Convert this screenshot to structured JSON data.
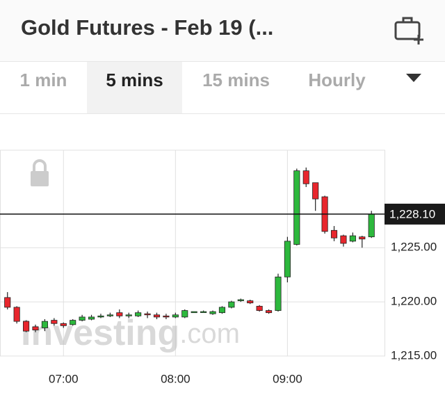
{
  "header": {
    "title": "Gold Futures - Feb 19 (..."
  },
  "tabs": [
    "1 min",
    "5 mins",
    "15 mins",
    "Hourly"
  ],
  "active_tab": 1,
  "chart_data": {
    "type": "candlestick",
    "watermark": [
      "Investing",
      ".com"
    ],
    "x": [
      390,
      395,
      400,
      405,
      410,
      415,
      420,
      425,
      430,
      435,
      440,
      445,
      450,
      455,
      460,
      465,
      470,
      475,
      480,
      485,
      490,
      495,
      500,
      505,
      510,
      515,
      520,
      525,
      530,
      535,
      540,
      545,
      550,
      555,
      560,
      565,
      570,
      575,
      580,
      585
    ],
    "open": [
      1220.4,
      1219.5,
      1218.2,
      1217.7,
      1217.6,
      1218.3,
      1218.0,
      1217.9,
      1218.3,
      1218.4,
      1218.6,
      1218.7,
      1219.0,
      1218.7,
      1218.7,
      1218.9,
      1218.8,
      1218.7,
      1218.6,
      1218.6,
      1219.0,
      1219.05,
      1218.9,
      1219.0,
      1219.5,
      1220.1,
      1220.1,
      1219.6,
      1219.2,
      1219.2,
      1222.3,
      1225.3,
      1232.1,
      1231.0,
      1229.7,
      1226.6,
      1226.1,
      1225.6,
      1226.0,
      1226.0
    ],
    "high": [
      1220.9,
      1219.6,
      1218.3,
      1217.9,
      1218.4,
      1218.5,
      1218.1,
      1218.4,
      1218.8,
      1218.8,
      1218.9,
      1219.0,
      1219.3,
      1219.0,
      1219.2,
      1219.1,
      1219.0,
      1218.9,
      1219.0,
      1219.3,
      1219.1,
      1219.2,
      1219.2,
      1219.6,
      1220.1,
      1220.3,
      1220.2,
      1219.7,
      1219.3,
      1222.6,
      1226.0,
      1232.3,
      1232.4,
      1231.0,
      1229.8,
      1227.0,
      1226.2,
      1226.4,
      1226.1,
      1228.4
    ],
    "low": [
      1219.3,
      1218.0,
      1217.2,
      1217.2,
      1217.3,
      1217.8,
      1217.6,
      1217.8,
      1218.2,
      1218.3,
      1218.5,
      1218.6,
      1218.5,
      1218.5,
      1218.6,
      1218.5,
      1218.4,
      1218.4,
      1218.5,
      1218.5,
      1219.0,
      1219.0,
      1218.8,
      1218.9,
      1219.4,
      1220.0,
      1219.8,
      1219.1,
      1218.9,
      1219.1,
      1221.8,
      1225.2,
      1230.6,
      1228.4,
      1226.3,
      1225.6,
      1225.1,
      1225.5,
      1225.0,
      1225.9
    ],
    "close": [
      1219.5,
      1218.2,
      1217.3,
      1217.4,
      1218.2,
      1218.0,
      1217.8,
      1218.3,
      1218.6,
      1218.6,
      1218.7,
      1218.8,
      1218.7,
      1218.8,
      1219.0,
      1218.8,
      1218.6,
      1218.6,
      1218.8,
      1219.2,
      1219.1,
      1219.1,
      1219.1,
      1219.5,
      1220.0,
      1220.2,
      1219.9,
      1219.2,
      1219.0,
      1222.3,
      1225.6,
      1232.1,
      1230.9,
      1229.5,
      1226.5,
      1225.9,
      1225.4,
      1226.1,
      1225.8,
      1228.1
    ],
    "up_color": "#2db83d",
    "down_color": "#e8262d",
    "xlim": [
      386,
      592
    ],
    "xticks": [
      {
        "value": 420,
        "label": "07:00"
      },
      {
        "value": 480,
        "label": "08:00"
      },
      {
        "value": 540,
        "label": "09:00"
      }
    ],
    "ylim": [
      1215,
      1234
    ],
    "yticks": [
      {
        "value": 1215,
        "label": "1,215.00"
      },
      {
        "value": 1220,
        "label": "1,220.00"
      },
      {
        "value": 1225,
        "label": "1,225.00"
      }
    ],
    "last_price": {
      "value": 1228.1,
      "label": "1,228.10"
    },
    "grid": true
  }
}
